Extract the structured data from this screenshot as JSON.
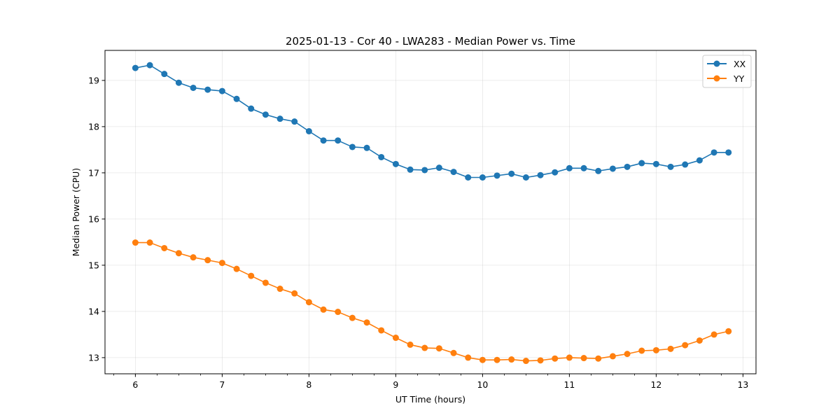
{
  "chart_data": {
    "type": "line",
    "title": "2025-01-13 - Cor 40 - LWA283 - Median Power vs. Time",
    "xlabel": "UT Time (hours)",
    "ylabel": "Median Power (CPU)",
    "xlim": [
      5.65,
      13.15
    ],
    "ylim": [
      12.65,
      19.65
    ],
    "xticks": [
      6,
      7,
      8,
      9,
      10,
      11,
      12,
      13
    ],
    "yticks": [
      13,
      14,
      15,
      16,
      17,
      18,
      19
    ],
    "grid": true,
    "legend_position": "top-right",
    "x": [
      6.0,
      6.1667,
      6.3333,
      6.5,
      6.6667,
      6.8333,
      7.0,
      7.1667,
      7.3333,
      7.5,
      7.6667,
      7.8333,
      8.0,
      8.1667,
      8.3333,
      8.5,
      8.6667,
      8.8333,
      9.0,
      9.1667,
      9.3333,
      9.5,
      9.6667,
      9.8333,
      10.0,
      10.1667,
      10.3333,
      10.5,
      10.6667,
      10.8333,
      11.0,
      11.1667,
      11.3333,
      11.5,
      11.6667,
      11.8333,
      12.0,
      12.1667,
      12.3333,
      12.5,
      12.6667,
      12.8333
    ],
    "series": [
      {
        "name": "XX",
        "color": "#1f77b4",
        "values": [
          19.27,
          19.33,
          19.14,
          18.95,
          18.84,
          18.8,
          18.77,
          18.6,
          18.39,
          18.26,
          18.17,
          18.11,
          17.9,
          17.7,
          17.7,
          17.56,
          17.54,
          17.34,
          17.19,
          17.07,
          17.06,
          17.11,
          17.02,
          16.9,
          16.9,
          16.94,
          16.98,
          16.9,
          16.95,
          17.01,
          17.1,
          17.1,
          17.04,
          17.09,
          17.13,
          17.21,
          17.19,
          17.13,
          17.18,
          17.27,
          17.44,
          17.44
        ]
      },
      {
        "name": "YY",
        "color": "#ff7f0e",
        "values": [
          15.49,
          15.49,
          15.37,
          15.26,
          15.17,
          15.11,
          15.05,
          14.92,
          14.77,
          14.62,
          14.49,
          14.39,
          14.2,
          14.04,
          13.99,
          13.86,
          13.76,
          13.59,
          13.43,
          13.28,
          13.21,
          13.2,
          13.1,
          13.0,
          12.95,
          12.95,
          12.96,
          12.93,
          12.94,
          12.98,
          13.0,
          12.99,
          12.98,
          13.03,
          13.08,
          13.15,
          13.16,
          13.19,
          13.27,
          13.37,
          13.5,
          13.57
        ]
      }
    ]
  }
}
